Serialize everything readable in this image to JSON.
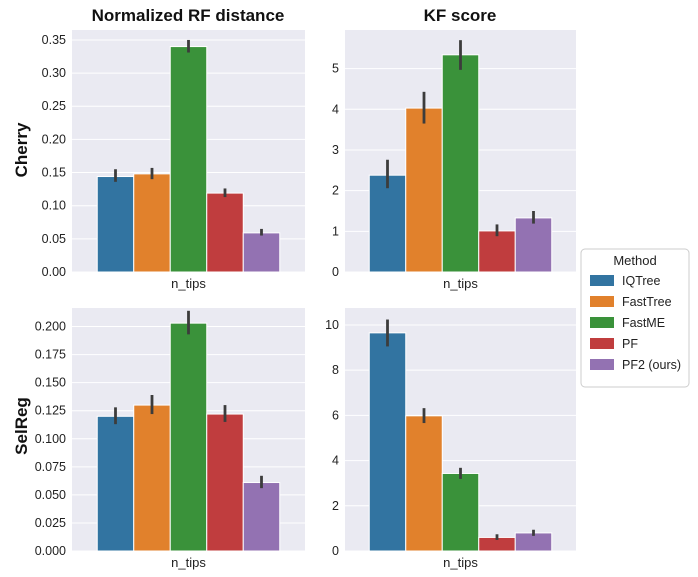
{
  "methods": [
    "IQTree",
    "FastTree",
    "FastME",
    "PF",
    "PF2 (ours)"
  ],
  "colors": [
    "#3274a1",
    "#e1812c",
    "#3a923a",
    "#c03d3e",
    "#9372b2"
  ],
  "legend": {
    "title": "Method",
    "placement": "right-center"
  },
  "col_titles": [
    "Normalized RF distance",
    "KF score"
  ],
  "row_labels": [
    "Cherry",
    "SelReg"
  ],
  "chart_data": [
    {
      "type": "bar",
      "row": "Cherry",
      "title": "Normalized RF distance",
      "xlabel": "n_tips",
      "ylabel": "",
      "ylim": [
        0,
        0.365
      ],
      "yticks": [
        0.0,
        0.05,
        0.1,
        0.15,
        0.2,
        0.25,
        0.3,
        0.35
      ],
      "ytick_labels": [
        "0.00",
        "0.05",
        "0.10",
        "0.15",
        "0.20",
        "0.25",
        "0.30",
        "0.35"
      ],
      "values": [
        0.144,
        0.148,
        0.34,
        0.119,
        0.059
      ],
      "err_low": [
        0.136,
        0.14,
        0.331,
        0.113,
        0.055
      ],
      "err_high": [
        0.155,
        0.157,
        0.35,
        0.126,
        0.065
      ]
    },
    {
      "type": "bar",
      "row": "Cherry",
      "title": "KF score",
      "xlabel": "n_tips",
      "ylabel": "",
      "ylim": [
        0,
        5.95
      ],
      "yticks": [
        0,
        1,
        2,
        3,
        4,
        5
      ],
      "ytick_labels": [
        "0",
        "1",
        "2",
        "3",
        "4",
        "5"
      ],
      "values": [
        2.38,
        4.03,
        5.34,
        1.01,
        1.33
      ],
      "err_low": [
        2.06,
        3.65,
        4.97,
        0.88,
        1.19
      ],
      "err_high": [
        2.76,
        4.43,
        5.7,
        1.17,
        1.5
      ]
    },
    {
      "type": "bar",
      "row": "SelReg",
      "title": "Normalized RF distance",
      "xlabel": "n_tips",
      "ylabel": "",
      "ylim": [
        0,
        0.2165
      ],
      "yticks": [
        0.0,
        0.025,
        0.05,
        0.075,
        0.1,
        0.125,
        0.15,
        0.175,
        0.2
      ],
      "ytick_labels": [
        "0.000",
        "0.025",
        "0.050",
        "0.075",
        "0.100",
        "0.125",
        "0.150",
        "0.175",
        "0.200"
      ],
      "values": [
        0.12,
        0.13,
        0.203,
        0.122,
        0.061
      ],
      "err_low": [
        0.113,
        0.122,
        0.193,
        0.115,
        0.056
      ],
      "err_high": [
        0.128,
        0.139,
        0.214,
        0.13,
        0.067
      ]
    },
    {
      "type": "bar",
      "row": "SelReg",
      "title": "KF score",
      "xlabel": "n_tips",
      "ylabel": "",
      "ylim": [
        0,
        10.75
      ],
      "yticks": [
        0,
        2,
        4,
        6,
        8,
        10
      ],
      "ytick_labels": [
        "0",
        "2",
        "4",
        "6",
        "8",
        "10"
      ],
      "values": [
        9.65,
        5.98,
        3.43,
        0.6,
        0.8
      ],
      "err_low": [
        9.05,
        5.66,
        3.19,
        0.49,
        0.67
      ],
      "err_high": [
        10.24,
        6.32,
        3.68,
        0.74,
        0.94
      ]
    }
  ]
}
